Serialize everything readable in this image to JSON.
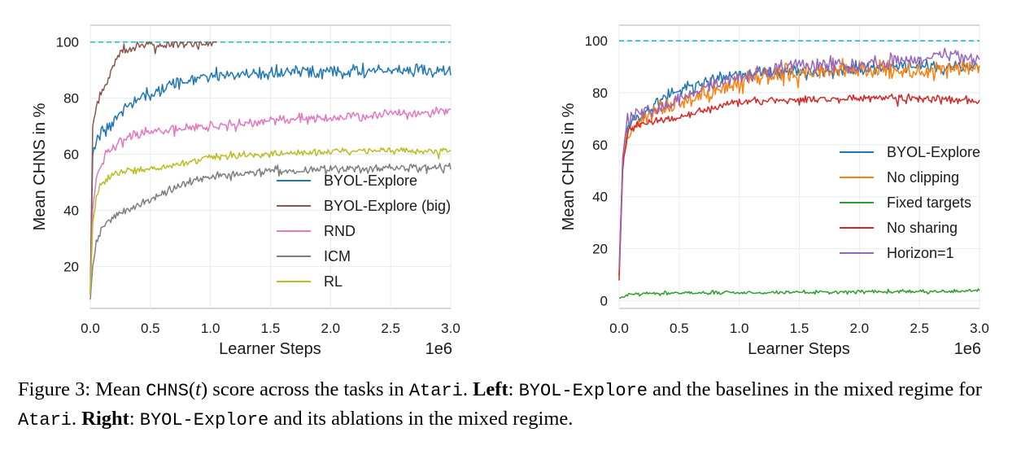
{
  "chart_data": [
    {
      "type": "line",
      "xlabel": "Learner Steps",
      "ylabel": "Mean CHNS in %",
      "x_multiplier": "1e6",
      "xlim": [
        0,
        3.0
      ],
      "ylim": [
        5,
        106
      ],
      "xticks": [
        "0.0",
        "0.5",
        "1.0",
        "1.5",
        "2.0",
        "2.5",
        "3.0"
      ],
      "yticks": [
        "20",
        "40",
        "60",
        "80",
        "100"
      ],
      "reference_line": 100,
      "legend_position": "lower-right",
      "series": [
        {
          "name": "BYOL-Explore",
          "color": "#1f77b4",
          "noise": 1.2,
          "points": [
            [
              0,
              10
            ],
            [
              0.02,
              60
            ],
            [
              0.05,
              66
            ],
            [
              0.1,
              68
            ],
            [
              0.2,
              72
            ],
            [
              0.3,
              77
            ],
            [
              0.4,
              80
            ],
            [
              0.5,
              82
            ],
            [
              0.6,
              84
            ],
            [
              0.7,
              85
            ],
            [
              0.8,
              86
            ],
            [
              0.9,
              87
            ],
            [
              1.0,
              88
            ],
            [
              1.2,
              88.5
            ],
            [
              1.5,
              89
            ],
            [
              2.0,
              89.5
            ],
            [
              2.5,
              89.8
            ],
            [
              3.0,
              89.5
            ]
          ]
        },
        {
          "name": "BYOL-Explore (big)",
          "color": "#8c564b",
          "noise": 1.0,
          "max_x": 1.05,
          "points": [
            [
              0,
              10
            ],
            [
              0.02,
              70
            ],
            [
              0.05,
              78
            ],
            [
              0.1,
              82
            ],
            [
              0.15,
              87
            ],
            [
              0.2,
              92
            ],
            [
              0.25,
              96
            ],
            [
              0.3,
              98
            ],
            [
              0.4,
              99
            ],
            [
              0.6,
              99.3
            ],
            [
              0.8,
              99.5
            ],
            [
              1.05,
              100
            ]
          ]
        },
        {
          "name": "RND",
          "color": "#e377c2",
          "noise": 0.9,
          "points": [
            [
              0,
              10
            ],
            [
              0.02,
              40
            ],
            [
              0.05,
              52
            ],
            [
              0.1,
              58
            ],
            [
              0.2,
              63
            ],
            [
              0.3,
              66
            ],
            [
              0.5,
              67.5
            ],
            [
              0.8,
              69
            ],
            [
              1.0,
              70
            ],
            [
              1.5,
              72
            ],
            [
              2.0,
              73
            ],
            [
              2.5,
              74.5
            ],
            [
              3.0,
              75.5
            ]
          ]
        },
        {
          "name": "ICM",
          "color": "#7f7f7f",
          "noise": 0.8,
          "points": [
            [
              0,
              8
            ],
            [
              0.02,
              20
            ],
            [
              0.05,
              28
            ],
            [
              0.1,
              34
            ],
            [
              0.2,
              38
            ],
            [
              0.3,
              40
            ],
            [
              0.5,
              44
            ],
            [
              0.7,
              48
            ],
            [
              0.9,
              51
            ],
            [
              1.0,
              52
            ],
            [
              1.5,
              54
            ],
            [
              2.0,
              54.5
            ],
            [
              2.5,
              55
            ],
            [
              3.0,
              55.5
            ]
          ]
        },
        {
          "name": "RL",
          "color": "#bcbd22",
          "noise": 0.6,
          "points": [
            [
              0,
              10
            ],
            [
              0.02,
              35
            ],
            [
              0.05,
              45
            ],
            [
              0.1,
              50
            ],
            [
              0.2,
              53
            ],
            [
              0.3,
              54
            ],
            [
              0.5,
              54.5
            ],
            [
              0.7,
              56
            ],
            [
              0.9,
              58
            ],
            [
              1.0,
              59
            ],
            [
              1.5,
              60
            ],
            [
              2.0,
              61
            ],
            [
              2.5,
              61.5
            ],
            [
              3.0,
              61
            ]
          ]
        }
      ]
    },
    {
      "type": "line",
      "xlabel": "Learner Steps",
      "ylabel": "Mean CHNS in %",
      "x_multiplier": "1e6",
      "xlim": [
        0,
        3.0
      ],
      "ylim": [
        -3,
        106
      ],
      "xticks": [
        "0.0",
        "0.5",
        "1.0",
        "1.5",
        "2.0",
        "2.5",
        "3.0"
      ],
      "yticks": [
        "0",
        "20",
        "40",
        "60",
        "80",
        "100"
      ],
      "reference_line": 100,
      "legend_position": "right",
      "series": [
        {
          "name": "BYOL-Explore",
          "color": "#1f77b4",
          "noise": 1.3,
          "points": [
            [
              0,
              10
            ],
            [
              0.03,
              55
            ],
            [
              0.07,
              68
            ],
            [
              0.15,
              70
            ],
            [
              0.3,
              76
            ],
            [
              0.5,
              81
            ],
            [
              0.7,
              84
            ],
            [
              0.9,
              86
            ],
            [
              1.0,
              87
            ],
            [
              1.5,
              88
            ],
            [
              2.0,
              89
            ],
            [
              2.5,
              90
            ],
            [
              3.0,
              90
            ]
          ]
        },
        {
          "name": "No clipping",
          "color": "#ff7f0e",
          "noise": 1.8,
          "points": [
            [
              0,
              10
            ],
            [
              0.03,
              52
            ],
            [
              0.07,
              66
            ],
            [
              0.15,
              69
            ],
            [
              0.3,
              73
            ],
            [
              0.5,
              76
            ],
            [
              0.7,
              79
            ],
            [
              0.9,
              82
            ],
            [
              1.1,
              85
            ],
            [
              1.3,
              87
            ],
            [
              1.5,
              88
            ],
            [
              2.0,
              89
            ],
            [
              2.5,
              89
            ],
            [
              3.0,
              90
            ]
          ]
        },
        {
          "name": "Fixed targets",
          "color": "#2ca02c",
          "noise": 0.35,
          "points": [
            [
              0,
              1
            ],
            [
              0.1,
              2.5
            ],
            [
              0.5,
              3
            ],
            [
              1.0,
              3
            ],
            [
              1.5,
              3.2
            ],
            [
              2.0,
              3.5
            ],
            [
              2.5,
              3.5
            ],
            [
              3.0,
              3.8
            ]
          ]
        },
        {
          "name": "No sharing",
          "color": "#d62728",
          "noise": 0.8,
          "points": [
            [
              0,
              8
            ],
            [
              0.03,
              50
            ],
            [
              0.07,
              65
            ],
            [
              0.15,
              68
            ],
            [
              0.3,
              69
            ],
            [
              0.5,
              70
            ],
            [
              0.7,
              73
            ],
            [
              0.9,
              76
            ],
            [
              1.1,
              77
            ],
            [
              1.5,
              77
            ],
            [
              2.0,
              78
            ],
            [
              2.5,
              78
            ],
            [
              3.0,
              77
            ]
          ]
        },
        {
          "name": "Horizon=1",
          "color": "#9467bd",
          "noise": 1.5,
          "points": [
            [
              0,
              12
            ],
            [
              0.03,
              55
            ],
            [
              0.07,
              70
            ],
            [
              0.15,
              73
            ],
            [
              0.3,
              74
            ],
            [
              0.5,
              77
            ],
            [
              0.7,
              82
            ],
            [
              0.9,
              85
            ],
            [
              1.1,
              87
            ],
            [
              1.3,
              89
            ],
            [
              1.5,
              90
            ],
            [
              2.0,
              91
            ],
            [
              2.5,
              93
            ],
            [
              2.8,
              95
            ],
            [
              3.0,
              93
            ]
          ]
        }
      ]
    }
  ],
  "caption": {
    "prefix": "Figure 3: Mean ",
    "chns": "CHNS",
    "paren_open": "(",
    "t": "t",
    "paren_close": ")",
    "mid1": " score across the tasks in ",
    "atari1": "Atari",
    "mid2": ". ",
    "left_label": "Left",
    "mid3": ": ",
    "byol1": "BYOL-Explore",
    "mid4": " and the baselines in the mixed regime for ",
    "atari2": "Atari",
    "mid5": ". ",
    "right_label": "Right",
    "mid6": ": ",
    "byol2": "BYOL-Explore",
    "mid7": " and its ablations in the mixed regime."
  }
}
